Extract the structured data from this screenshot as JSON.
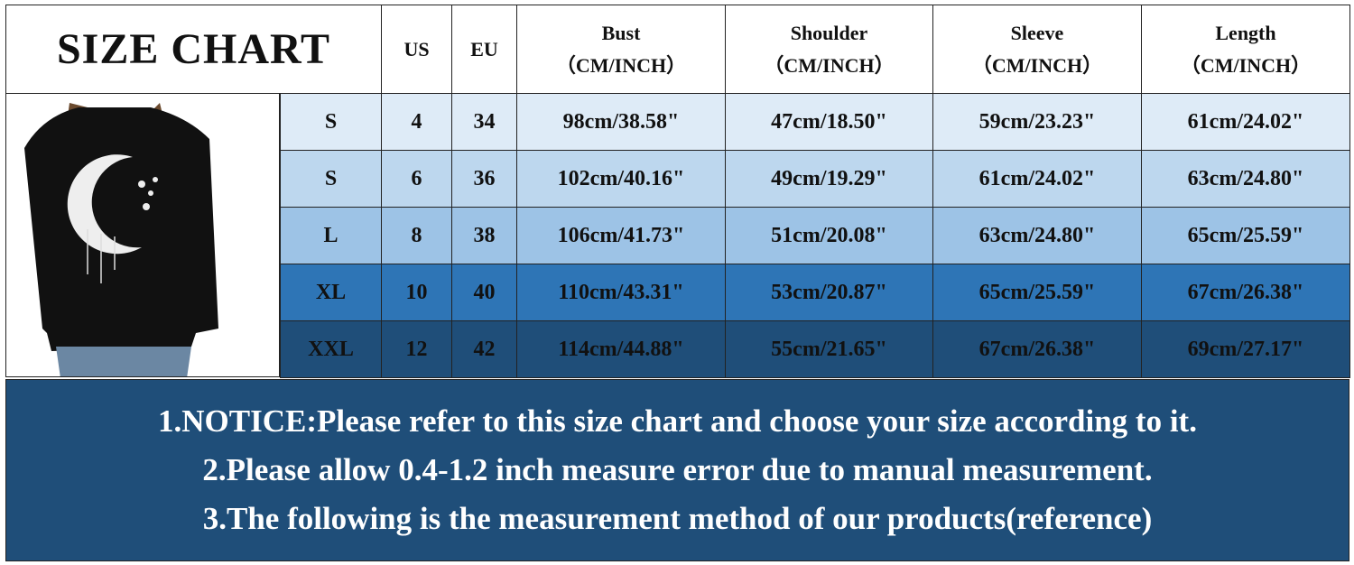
{
  "title": "SIZE CHART",
  "headers": [
    {
      "l1": "US",
      "l2": ""
    },
    {
      "l1": "EU",
      "l2": ""
    },
    {
      "l1": "Bust",
      "l2": "（CM/INCH）"
    },
    {
      "l1": "Shoulder",
      "l2": "（CM/INCH）"
    },
    {
      "l1": "Sleeve",
      "l2": "（CM/INCH）"
    },
    {
      "l1": "Length",
      "l2": "（CM/INCH）"
    }
  ],
  "rows": [
    {
      "size": "S",
      "us": "4",
      "eu": "34",
      "bust": "98cm/38.58\"",
      "shoulder": "47cm/18.50\"",
      "sleeve": "59cm/23.23\"",
      "length": "61cm/24.02\"",
      "color": "#deebf7"
    },
    {
      "size": "S",
      "us": "6",
      "eu": "36",
      "bust": "102cm/40.16\"",
      "shoulder": "49cm/19.29\"",
      "sleeve": "61cm/24.02\"",
      "length": "63cm/24.80\"",
      "color": "#bdd7ee"
    },
    {
      "size": "L",
      "us": "8",
      "eu": "38",
      "bust": "106cm/41.73\"",
      "shoulder": "51cm/20.08\"",
      "sleeve": "63cm/24.80\"",
      "length": "65cm/25.59\"",
      "color": "#9dc3e6"
    },
    {
      "size": "XL",
      "us": "10",
      "eu": "40",
      "bust": "110cm/43.31\"",
      "shoulder": "53cm/20.87\"",
      "sleeve": "65cm/25.59\"",
      "length": "67cm/26.38\"",
      "color": "#2e75b6"
    },
    {
      "size": "XXL",
      "us": "12",
      "eu": "42",
      "bust": "114cm/44.88\"",
      "shoulder": "55cm/21.65\"",
      "sleeve": "67cm/26.38\"",
      "length": "69cm/27.17\"",
      "color": "#1f4e79"
    }
  ],
  "notice": [
    "1.NOTICE:Please refer to this size chart and choose your size according to it.",
    "2.Please allow 0.4-1.2 inch measure error due to manual measurement.",
    "3.The following is the measurement method of our products(reference)"
  ]
}
